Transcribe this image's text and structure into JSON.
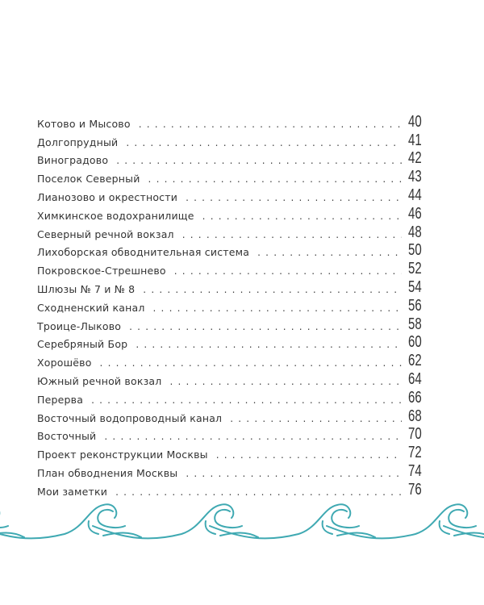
{
  "toc": [
    {
      "title": "Котово и Мысово",
      "page": "40"
    },
    {
      "title": "Долгопрудный",
      "page": "41"
    },
    {
      "title": "Виноградово",
      "page": "42"
    },
    {
      "title": "Поселок Северный",
      "page": "43"
    },
    {
      "title": "Лианозово и окрестности",
      "page": "44"
    },
    {
      "title": "Химкинское водохранилище",
      "page": "46"
    },
    {
      "title": "Северный речной вокзал",
      "page": "48"
    },
    {
      "title": "Лихоборская обводнительная система",
      "page": "50"
    },
    {
      "title": "Покровское-Стрешнево",
      "page": "52"
    },
    {
      "title": "Шлюзы № 7 и № 8",
      "page": "54"
    },
    {
      "title": "Сходненский канал",
      "page": "56"
    },
    {
      "title": "Троице-Лыково",
      "page": "58"
    },
    {
      "title": "Серебряный Бор",
      "page": "60"
    },
    {
      "title": "Хорошёво",
      "page": "62"
    },
    {
      "title": "Южный речной вокзал",
      "page": "64"
    },
    {
      "title": "Перерва",
      "page": "66"
    },
    {
      "title": "Восточный водопроводный канал",
      "page": "68"
    },
    {
      "title": "Восточный",
      "page": "70"
    },
    {
      "title": "Проект реконструкции Москвы",
      "page": "72"
    },
    {
      "title": "План обводнения Москвы",
      "page": "74"
    },
    {
      "title": "Мои заметки",
      "page": "76"
    }
  ],
  "colors": {
    "wave": "#3fa9b2",
    "text": "#333333"
  }
}
